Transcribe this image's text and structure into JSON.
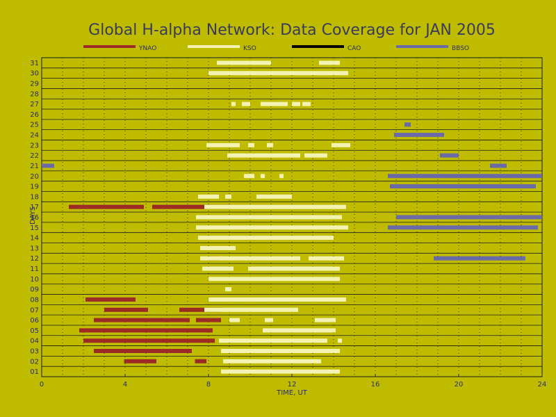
{
  "chart_data": {
    "type": "timeline",
    "title": "Global H-alpha Network: Data Coverage for JAN 2005",
    "xlabel": "TIME, UT",
    "ylabel": "DAYS",
    "xlim": [
      0,
      24
    ],
    "xticks": [
      0,
      4,
      8,
      12,
      16,
      20,
      24
    ],
    "days": [
      "01",
      "02",
      "03",
      "04",
      "05",
      "06",
      "07",
      "08",
      "09",
      "10",
      "11",
      "12",
      "13",
      "14",
      "15",
      "16",
      "17",
      "18",
      "19",
      "20",
      "21",
      "22",
      "23",
      "24",
      "25",
      "26",
      "27",
      "28",
      "29",
      "30",
      "31"
    ],
    "grid": true,
    "legend_position": "top",
    "series": [
      {
        "name": "YNAO",
        "color": "#9c2b25",
        "intervals": [
          {
            "day": "02",
            "start": 3.95,
            "end": 5.5
          },
          {
            "day": "02",
            "start": 7.35,
            "end": 7.9
          },
          {
            "day": "03",
            "start": 2.5,
            "end": 7.2
          },
          {
            "day": "04",
            "start": 2.0,
            "end": 8.3
          },
          {
            "day": "05",
            "start": 1.8,
            "end": 8.2
          },
          {
            "day": "06",
            "start": 2.5,
            "end": 7.1
          },
          {
            "day": "06",
            "start": 7.4,
            "end": 8.6
          },
          {
            "day": "07",
            "start": 3.0,
            "end": 5.1
          },
          {
            "day": "07",
            "start": 6.6,
            "end": 8.6
          },
          {
            "day": "08",
            "start": 2.1,
            "end": 4.5
          },
          {
            "day": "12",
            "start": 8.0,
            "end": 8.5
          },
          {
            "day": "17",
            "start": 1.3,
            "end": 4.9
          },
          {
            "day": "17",
            "start": 5.3,
            "end": 9.0
          }
        ]
      },
      {
        "name": "KSO",
        "color": "#f3f2b3",
        "intervals": [
          {
            "day": "01",
            "start": 8.6,
            "end": 14.3
          },
          {
            "day": "02",
            "start": 8.7,
            "end": 13.4
          },
          {
            "day": "03",
            "start": 8.6,
            "end": 14.3
          },
          {
            "day": "04",
            "start": 8.5,
            "end": 13.7
          },
          {
            "day": "04",
            "start": 14.2,
            "end": 14.4
          },
          {
            "day": "05",
            "start": 10.6,
            "end": 14.1
          },
          {
            "day": "06",
            "start": 9.0,
            "end": 9.5
          },
          {
            "day": "06",
            "start": 10.7,
            "end": 11.1
          },
          {
            "day": "06",
            "start": 13.1,
            "end": 14.1
          },
          {
            "day": "07",
            "start": 7.8,
            "end": 12.3
          },
          {
            "day": "08",
            "start": 8.0,
            "end": 14.6
          },
          {
            "day": "09",
            "start": 8.8,
            "end": 9.1
          },
          {
            "day": "10",
            "start": 8.0,
            "end": 14.3
          },
          {
            "day": "11",
            "start": 7.7,
            "end": 9.2
          },
          {
            "day": "11",
            "start": 9.9,
            "end": 14.3
          },
          {
            "day": "12",
            "start": 7.6,
            "end": 12.4
          },
          {
            "day": "12",
            "start": 12.8,
            "end": 14.5
          },
          {
            "day": "13",
            "start": 7.6,
            "end": 9.3
          },
          {
            "day": "14",
            "start": 7.5,
            "end": 14.0
          },
          {
            "day": "15",
            "start": 7.4,
            "end": 14.7
          },
          {
            "day": "16",
            "start": 7.4,
            "end": 14.4
          },
          {
            "day": "17",
            "start": 7.8,
            "end": 14.6
          },
          {
            "day": "18",
            "start": 7.5,
            "end": 8.5
          },
          {
            "day": "18",
            "start": 8.8,
            "end": 9.1
          },
          {
            "day": "18",
            "start": 10.3,
            "end": 12.0
          },
          {
            "day": "20",
            "start": 9.7,
            "end": 10.2
          },
          {
            "day": "20",
            "start": 10.5,
            "end": 10.7
          },
          {
            "day": "20",
            "start": 11.4,
            "end": 11.6
          },
          {
            "day": "22",
            "start": 8.9,
            "end": 12.4
          },
          {
            "day": "22",
            "start": 12.6,
            "end": 13.7
          },
          {
            "day": "23",
            "start": 7.9,
            "end": 9.5
          },
          {
            "day": "23",
            "start": 9.9,
            "end": 10.2
          },
          {
            "day": "23",
            "start": 10.8,
            "end": 11.1
          },
          {
            "day": "23",
            "start": 13.9,
            "end": 14.8
          },
          {
            "day": "27",
            "start": 9.1,
            "end": 9.3
          },
          {
            "day": "27",
            "start": 9.6,
            "end": 10.0
          },
          {
            "day": "27",
            "start": 10.5,
            "end": 11.8
          },
          {
            "day": "27",
            "start": 12.0,
            "end": 12.4
          },
          {
            "day": "27",
            "start": 12.5,
            "end": 12.9
          },
          {
            "day": "30",
            "start": 8.0,
            "end": 14.7
          },
          {
            "day": "31",
            "start": 8.4,
            "end": 11.0
          },
          {
            "day": "31",
            "start": 13.3,
            "end": 14.3
          }
        ]
      },
      {
        "name": "CAO",
        "color": "#000000",
        "intervals": []
      },
      {
        "name": "BBSO",
        "color": "#6a6aa8",
        "intervals": [
          {
            "day": "12",
            "start": 18.8,
            "end": 23.2
          },
          {
            "day": "15",
            "start": 16.6,
            "end": 23.8
          },
          {
            "day": "16",
            "start": 17.0,
            "end": 24.0
          },
          {
            "day": "19",
            "start": 16.7,
            "end": 23.7
          },
          {
            "day": "20",
            "start": 16.6,
            "end": 24.0
          },
          {
            "day": "21",
            "start": 0.0,
            "end": 0.6
          },
          {
            "day": "21",
            "start": 21.5,
            "end": 22.3
          },
          {
            "day": "22",
            "start": 19.1,
            "end": 20.0
          },
          {
            "day": "24",
            "start": 16.9,
            "end": 19.3
          },
          {
            "day": "25",
            "start": 17.4,
            "end": 17.7
          }
        ]
      }
    ]
  }
}
